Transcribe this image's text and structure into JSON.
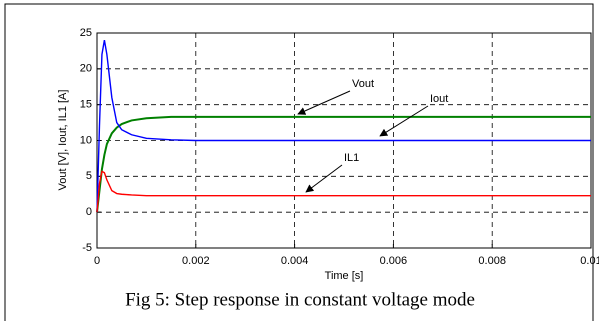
{
  "chart_data": {
    "type": "line",
    "xlabel": "Time [s]",
    "ylabel": "Vout [V], Iout, IL1 [A]",
    "caption": "Fig 5: Step response in constant voltage mode",
    "x": [
      0,
      5e-05,
      0.0001,
      0.00015,
      0.0002,
      0.0003,
      0.0004,
      0.0005,
      0.0007,
      0.001,
      0.0015,
      0.002,
      0.004,
      0.006,
      0.008,
      0.01
    ],
    "series": [
      {
        "name": "Vout",
        "color": "#008000",
        "values": [
          0,
          3,
          6,
          8,
          9.5,
          11,
          11.8,
          12.3,
          12.8,
          13.1,
          13.3,
          13.3,
          13.3,
          13.3,
          13.3,
          13.3
        ]
      },
      {
        "name": "Iout",
        "color": "#0000ff",
        "values": [
          0,
          12,
          22,
          24,
          22,
          16,
          12.5,
          11.5,
          10.8,
          10.3,
          10.1,
          10,
          10,
          10,
          10,
          10
        ]
      },
      {
        "name": "IL1",
        "color": "#ff0000",
        "values": [
          0,
          4,
          5.7,
          5.5,
          4.5,
          3,
          2.6,
          2.5,
          2.4,
          2.3,
          2.3,
          2.3,
          2.3,
          2.3,
          2.3,
          2.3
        ]
      }
    ],
    "xlim": [
      0,
      0.01
    ],
    "xticks": [
      0,
      0.002,
      0.004,
      0.006,
      0.008,
      0.01
    ],
    "ylim": [
      -5,
      25
    ],
    "yticks": [
      -5,
      0,
      5,
      10,
      15,
      20,
      25
    ],
    "grid": true
  }
}
